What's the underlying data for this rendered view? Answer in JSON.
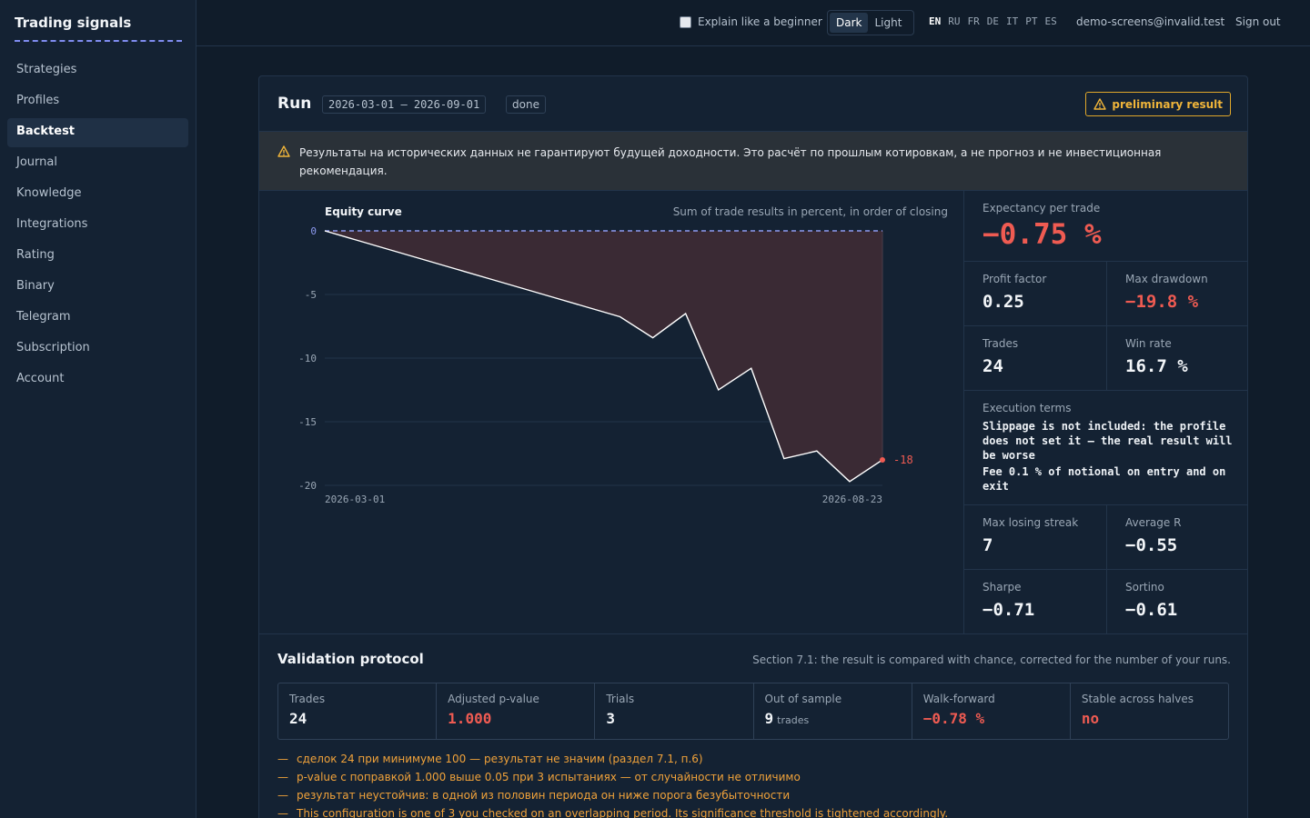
{
  "brand": "Trading signals",
  "nav": [
    "Strategies",
    "Profiles",
    "Backtest",
    "Journal",
    "Knowledge",
    "Integrations",
    "Rating",
    "Binary",
    "Telegram",
    "Subscription",
    "Account"
  ],
  "nav_active": "Backtest",
  "topbar": {
    "beginner_label": "Explain like a beginner",
    "theme_dark": "Dark",
    "theme_light": "Light",
    "languages": [
      "EN",
      "RU",
      "FR",
      "DE",
      "IT",
      "PT",
      "ES"
    ],
    "active_language": "EN",
    "email": "demo-screens@invalid.test",
    "signout": "Sign out"
  },
  "run": {
    "title": "Run",
    "period": "2026-03-01 – 2026-09-01",
    "status": "done",
    "badge": "preliminary result",
    "disclaimer": "Результаты на исторических данных не гарантируют будущей доходности. Это расчёт по прошлым котировкам, а не прогноз и не инвестиционная рекомендация."
  },
  "chart_data": {
    "type": "area",
    "title": "Equity curve",
    "subtitle": "Sum of trade results in percent, in order of closing",
    "x_tick_labels": [
      "2026-03-01",
      "2026-08-23"
    ],
    "y_ticks": [
      0,
      -5,
      -10,
      -15,
      -20
    ],
    "ylim": [
      -20,
      0
    ],
    "baseline": 0,
    "values": [
      0,
      -0.75,
      -1.5,
      -2.25,
      -3.0,
      -3.75,
      -4.5,
      -5.25,
      -6.0,
      -6.75,
      -8.4,
      -6.5,
      -12.5,
      -10.8,
      -17.9,
      -17.3,
      -19.7,
      -18.0
    ],
    "end_label": "-18",
    "colors": {
      "line": "#ffffff",
      "fill": "#3a2a34",
      "baseline": "#8d9af0",
      "end_point": "#ef5b52"
    }
  },
  "stats": {
    "expectancy": {
      "label": "Expectancy per trade",
      "value": "−0.75 %"
    },
    "profit_factor": {
      "label": "Profit factor",
      "value": "0.25"
    },
    "max_drawdown": {
      "label": "Max drawdown",
      "value": "−19.8 %"
    },
    "trades": {
      "label": "Trades",
      "value": "24"
    },
    "win_rate": {
      "label": "Win rate",
      "value": "16.7 %"
    },
    "execution": {
      "label": "Execution terms",
      "lines": [
        "Slippage is not included: the profile does not set it — the real result will be worse",
        "Fee 0.1 % of notional on entry and on exit"
      ]
    },
    "max_losing_streak": {
      "label": "Max losing streak",
      "value": "7"
    },
    "average_r": {
      "label": "Average R",
      "value": "−0.55"
    },
    "sharpe": {
      "label": "Sharpe",
      "value": "−0.71"
    },
    "sortino": {
      "label": "Sortino",
      "value": "−0.61"
    }
  },
  "validation": {
    "title": "Validation protocol",
    "note": "Section 7.1: the result is compared with chance, corrected for the number of your runs.",
    "cells": [
      {
        "label": "Trades",
        "value": "24",
        "unit": "",
        "negative": false
      },
      {
        "label": "Adjusted p-value",
        "value": "1.000",
        "unit": "",
        "negative": true
      },
      {
        "label": "Trials",
        "value": "3",
        "unit": "",
        "negative": false
      },
      {
        "label": "Out of sample",
        "value": "9",
        "unit": "trades",
        "negative": false
      },
      {
        "label": "Walk-forward",
        "value": "−0.78 %",
        "unit": "",
        "negative": true
      },
      {
        "label": "Stable across halves",
        "value": "no",
        "unit": "",
        "negative": true
      }
    ],
    "warnings": [
      "сделок 24 при минимуме 100 — результат не значим (раздел 7.1, п.6)",
      "p-value с поправкой 1.000 выше 0.05 при 3 испытаниях — от случайности не отличимо",
      "результат неустойчив: в одной из половин периода он ниже порога безубыточности",
      "This configuration is one of 3 you checked on an overlapping period. Its significance threshold is tightened accordingly."
    ],
    "dash": "—"
  }
}
